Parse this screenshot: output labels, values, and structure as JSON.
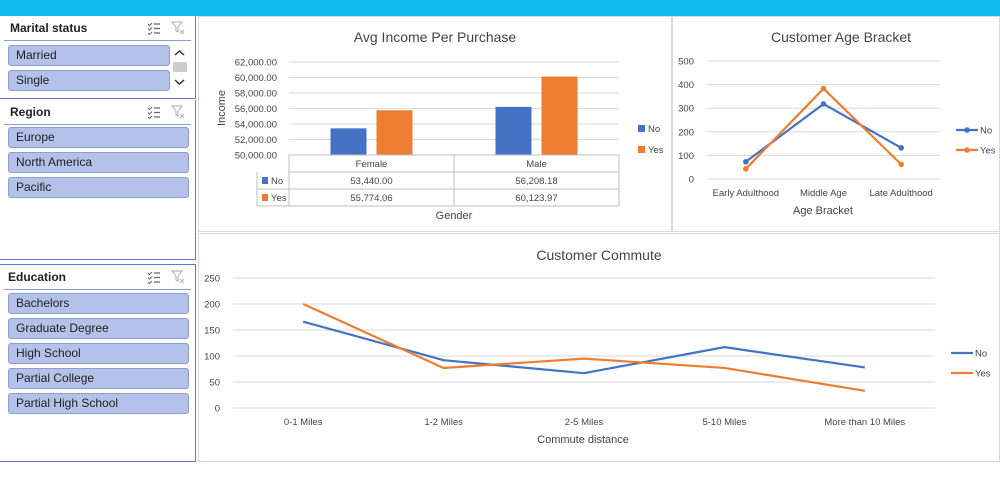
{
  "slicers": {
    "marital": {
      "title": "Marital status",
      "items": [
        "Married",
        "Single"
      ]
    },
    "region": {
      "title": "Region",
      "items": [
        "Europe",
        "North America",
        "Pacific"
      ]
    },
    "education": {
      "title": "Education",
      "items": [
        "Bachelors",
        "Graduate Degree",
        "High School",
        "Partial College",
        "Partial High School"
      ]
    }
  },
  "icons": {
    "multi_select": "multi-select-icon",
    "clear_filter": "clear-filter-icon",
    "scroll_up": "chevron-up-icon",
    "scroll_down": "chevron-down-icon"
  },
  "colors": {
    "no": "#4472c4",
    "yes": "#ed7d31",
    "header": "#12b9ed"
  },
  "chart_data": [
    {
      "type": "bar",
      "title": "Avg Income Per Purchase",
      "xlabel": "Gender",
      "ylabel": "Income",
      "categories": [
        "Female",
        "Male"
      ],
      "ylim": [
        50000,
        62000
      ],
      "yticks": [
        "50,000.00",
        "52,000.00",
        "54,000.00",
        "56,000.00",
        "58,000.00",
        "60,000.00",
        "62,000.00"
      ],
      "series": [
        {
          "name": "No",
          "values": [
            53440.0,
            56208.18
          ],
          "labels": [
            "53,440.00",
            "56,208.18"
          ]
        },
        {
          "name": "Yes",
          "values": [
            55774.06,
            60123.97
          ],
          "labels": [
            "55,774.06",
            "60,123.97"
          ]
        }
      ],
      "data_table": true,
      "legend": "right"
    },
    {
      "type": "line",
      "title": "Customer Age Bracket",
      "xlabel": "Age Bracket",
      "ylabel": "",
      "categories": [
        "Early Adulthood",
        "Middle Age",
        "Late Adulthood"
      ],
      "ylim": [
        0,
        500
      ],
      "yticks": [
        "0",
        "100",
        "200",
        "300",
        "400",
        "500"
      ],
      "series": [
        {
          "name": "No",
          "values": [
            73,
            318,
            132
          ]
        },
        {
          "name": "Yes",
          "values": [
            43,
            383,
            62
          ]
        }
      ],
      "legend": "right"
    },
    {
      "type": "line",
      "title": "Customer Commute",
      "xlabel": "Commute distance",
      "ylabel": "",
      "categories": [
        "0-1 Miles",
        "1-2 Miles",
        "2-5 Miles",
        "5-10 Miles",
        "More than 10 Miles"
      ],
      "ylim": [
        0,
        250
      ],
      "yticks": [
        "0",
        "50",
        "100",
        "150",
        "200",
        "250"
      ],
      "series": [
        {
          "name": "No",
          "values": [
            166,
            92,
            67,
            117,
            78
          ]
        },
        {
          "name": "Yes",
          "values": [
            200,
            77,
            95,
            77,
            33
          ]
        }
      ],
      "legend": "right"
    }
  ]
}
